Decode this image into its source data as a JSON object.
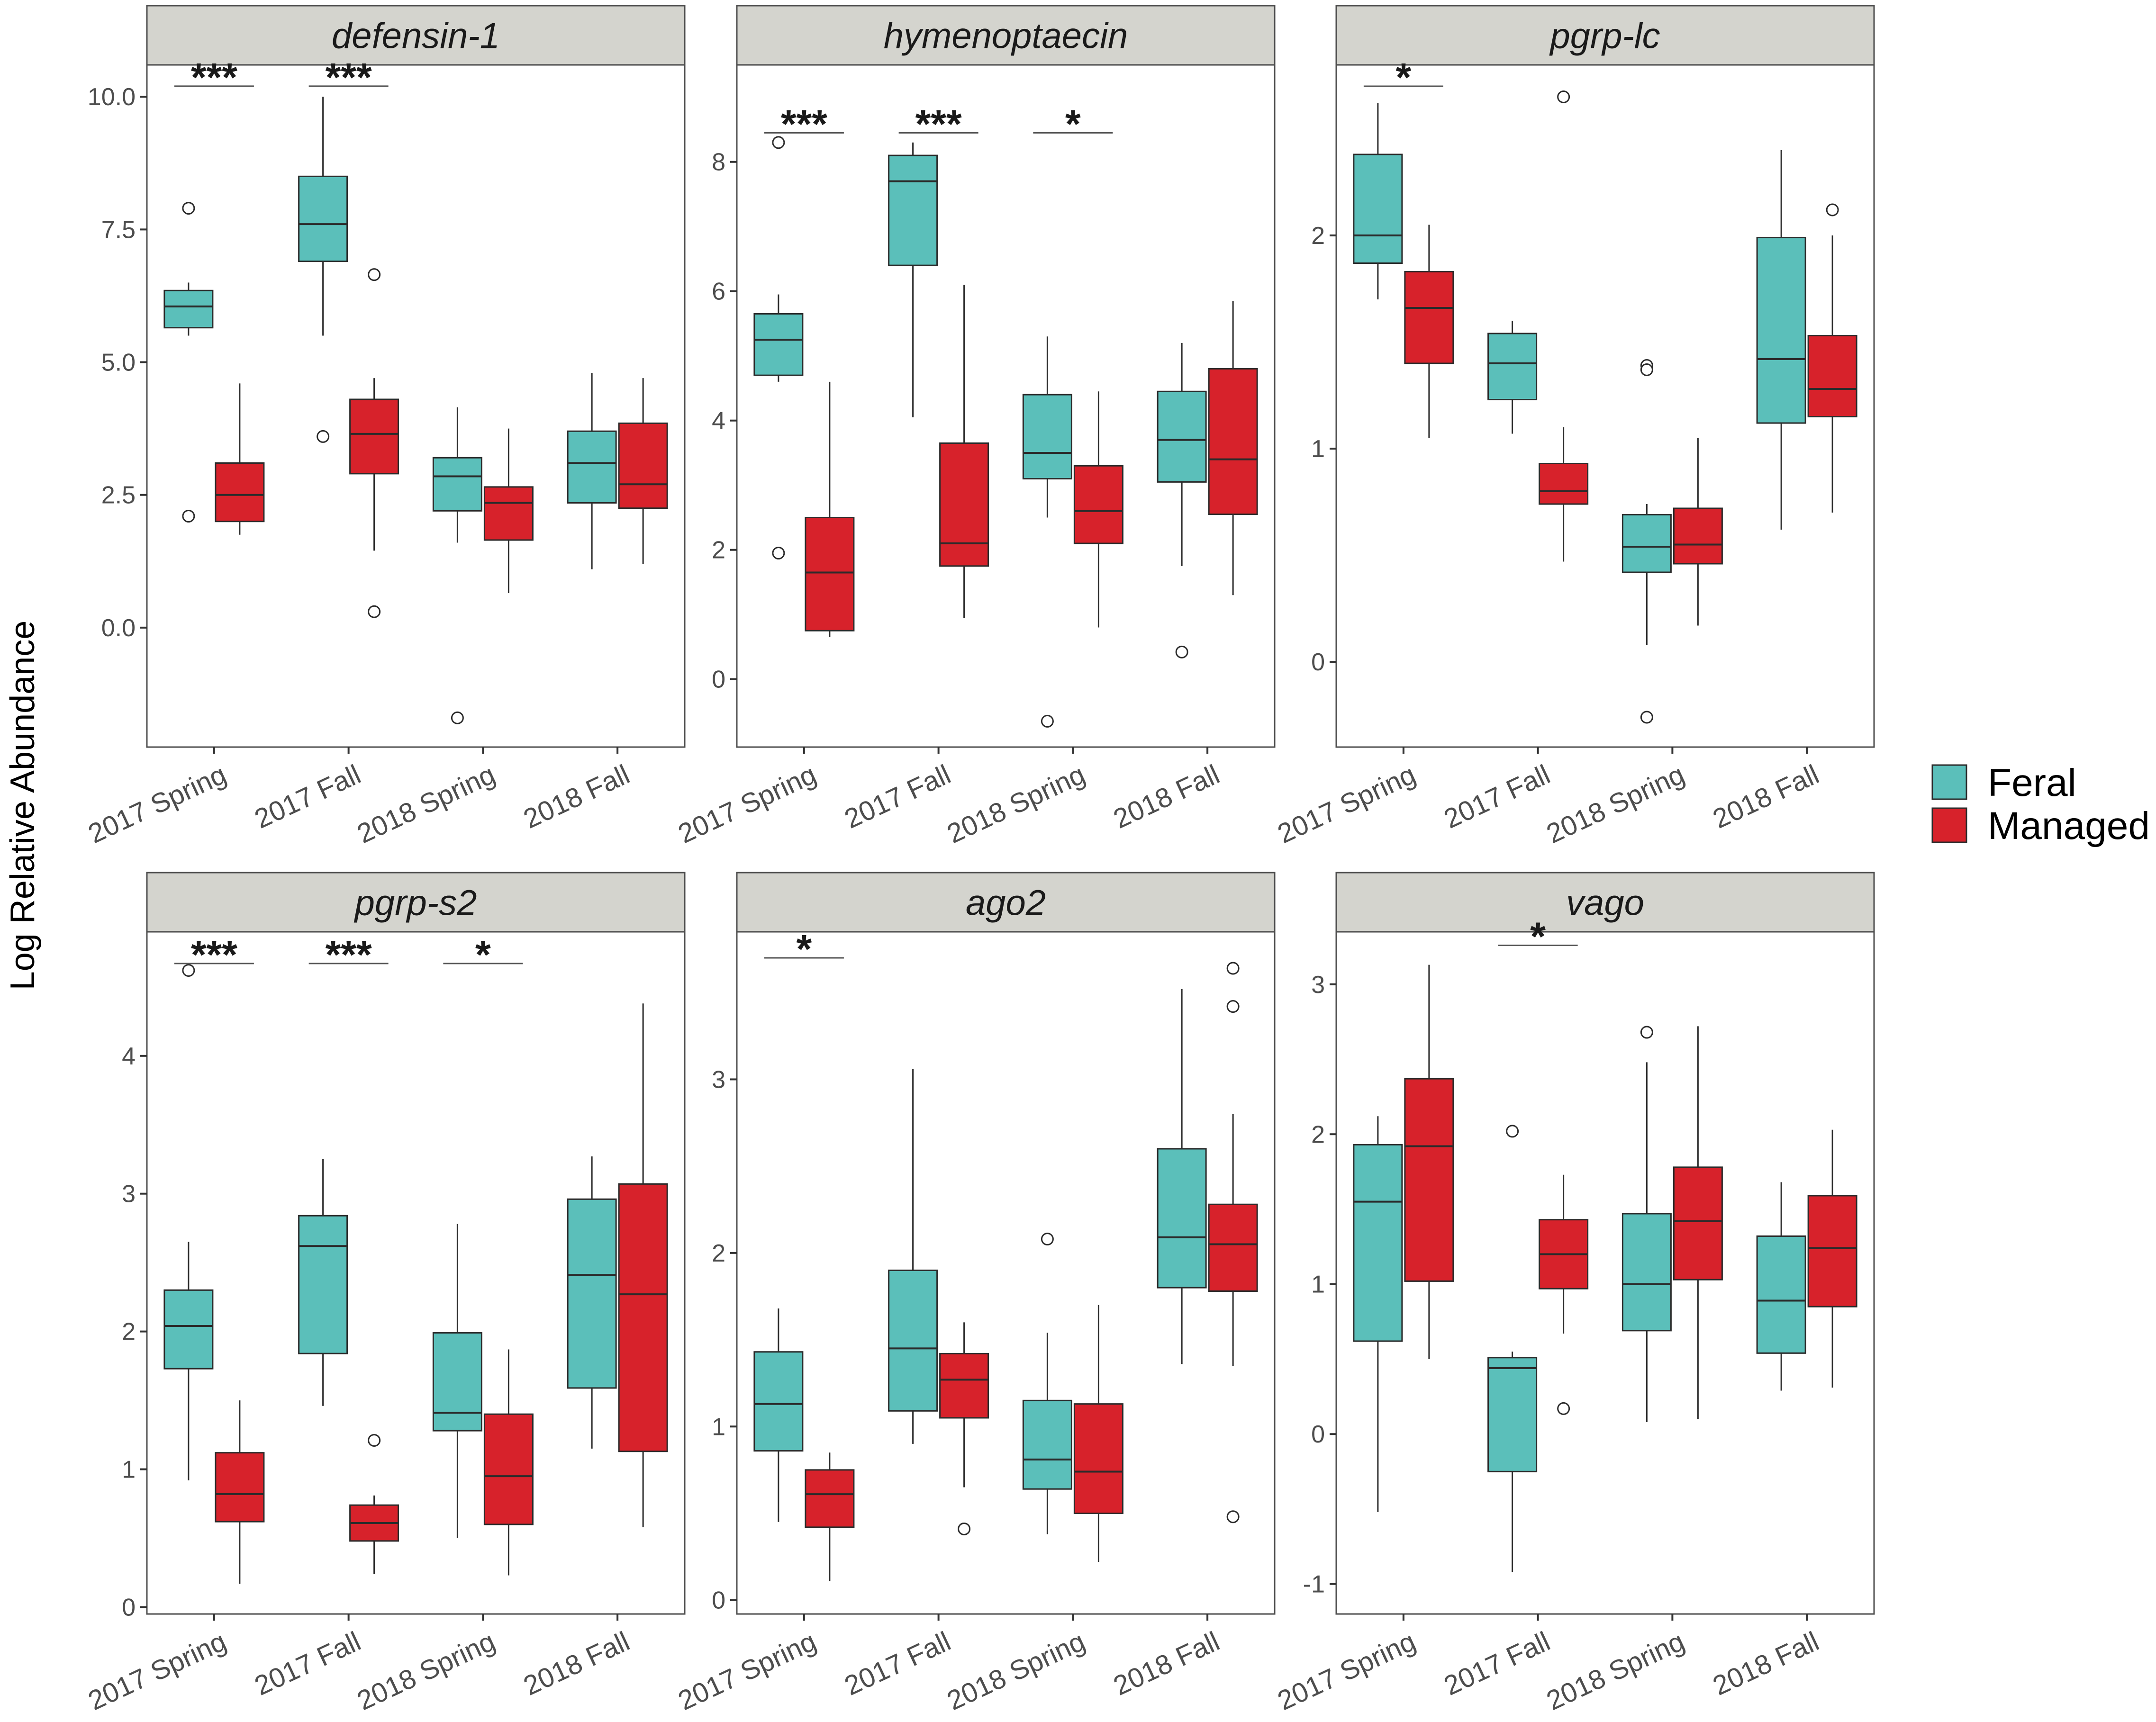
{
  "figure": {
    "y_axis_title": "Log Relative Abundance",
    "legend": {
      "position": "right",
      "items": [
        {
          "label": "Feral",
          "color": "#5BBFBA"
        },
        {
          "label": "Managed",
          "color": "#D7222B"
        }
      ]
    },
    "colors": {
      "feral": "#5BBFBA",
      "managed": "#D7222B",
      "strip": "#D4D4CE",
      "box_stroke": "#2b2b2b",
      "panel_border": "#4d4d4d"
    }
  },
  "chart_data": [
    {
      "type": "boxplot",
      "title": "defensin-1",
      "categories": [
        "2017 Spring",
        "2017 Fall",
        "2018 Spring",
        "2018 Fall"
      ],
      "ylim": [
        -2.25,
        10.6
      ],
      "yticks": [
        0,
        2.5,
        5,
        7.5,
        10
      ],
      "ytick_labels": [
        "0.0",
        "2.5",
        "5.0",
        "7.5",
        "10.0"
      ],
      "series": [
        {
          "name": "Feral",
          "boxes": [
            {
              "q1": 5.65,
              "median": 6.05,
              "q3": 6.35,
              "whisker_low": 5.5,
              "whisker_high": 6.5,
              "outliers": [
                7.9,
                2.1
              ]
            },
            {
              "q1": 6.9,
              "median": 7.6,
              "q3": 8.5,
              "whisker_low": 5.5,
              "whisker_high": 10.0,
              "outliers": [
                3.6
              ]
            },
            {
              "q1": 2.2,
              "median": 2.85,
              "q3": 3.2,
              "whisker_low": 1.6,
              "whisker_high": 4.15,
              "outliers": [
                -1.7
              ]
            },
            {
              "q1": 2.35,
              "median": 3.1,
              "q3": 3.7,
              "whisker_low": 1.1,
              "whisker_high": 4.8,
              "outliers": []
            }
          ]
        },
        {
          "name": "Managed",
          "boxes": [
            {
              "q1": 2.0,
              "median": 2.5,
              "q3": 3.1,
              "whisker_low": 1.75,
              "whisker_high": 4.6,
              "outliers": []
            },
            {
              "q1": 2.9,
              "median": 3.65,
              "q3": 4.3,
              "whisker_low": 1.45,
              "whisker_high": 4.7,
              "outliers": [
                6.65,
                0.3
              ]
            },
            {
              "q1": 1.65,
              "median": 2.35,
              "q3": 2.65,
              "whisker_low": 0.65,
              "whisker_high": 3.75,
              "outliers": []
            },
            {
              "q1": 2.25,
              "median": 2.7,
              "q3": 3.85,
              "whisker_low": 1.2,
              "whisker_high": 4.7,
              "outliers": []
            }
          ]
        }
      ],
      "annotations": [
        {
          "category": 0,
          "label": "***",
          "y": 10.2
        },
        {
          "category": 1,
          "label": "***",
          "y": 10.2
        }
      ]
    },
    {
      "type": "boxplot",
      "title": "hymenoptaecin",
      "categories": [
        "2017 Spring",
        "2017 Fall",
        "2018 Spring",
        "2018 Fall"
      ],
      "ylim": [
        -1.05,
        9.5
      ],
      "yticks": [
        0,
        2,
        4,
        6,
        8
      ],
      "ytick_labels": [
        "0",
        "2",
        "4",
        "6",
        "8"
      ],
      "series": [
        {
          "name": "Feral",
          "boxes": [
            {
              "q1": 4.7,
              "median": 5.25,
              "q3": 5.65,
              "whisker_low": 4.6,
              "whisker_high": 5.95,
              "outliers": [
                8.3,
                1.95
              ]
            },
            {
              "q1": 6.4,
              "median": 7.7,
              "q3": 8.1,
              "whisker_low": 4.05,
              "whisker_high": 8.3,
              "outliers": []
            },
            {
              "q1": 3.1,
              "median": 3.5,
              "q3": 4.4,
              "whisker_low": 2.5,
              "whisker_high": 5.3,
              "outliers": [
                -0.65
              ]
            },
            {
              "q1": 3.05,
              "median": 3.7,
              "q3": 4.45,
              "whisker_low": 1.75,
              "whisker_high": 5.2,
              "outliers": [
                0.42
              ]
            }
          ]
        },
        {
          "name": "Managed",
          "boxes": [
            {
              "q1": 0.75,
              "median": 1.65,
              "q3": 2.5,
              "whisker_low": 0.65,
              "whisker_high": 4.6,
              "outliers": []
            },
            {
              "q1": 1.75,
              "median": 2.1,
              "q3": 3.65,
              "whisker_low": 0.95,
              "whisker_high": 6.1,
              "outliers": []
            },
            {
              "q1": 2.1,
              "median": 2.6,
              "q3": 3.3,
              "whisker_low": 0.8,
              "whisker_high": 4.45,
              "outliers": []
            },
            {
              "q1": 2.55,
              "median": 3.4,
              "q3": 4.8,
              "whisker_low": 1.3,
              "whisker_high": 5.85,
              "outliers": []
            }
          ]
        }
      ],
      "annotations": [
        {
          "category": 0,
          "label": "***",
          "y": 8.45
        },
        {
          "category": 1,
          "label": "***",
          "y": 8.45
        },
        {
          "category": 2,
          "label": "*",
          "y": 8.45
        }
      ]
    },
    {
      "type": "boxplot",
      "title": "pgrp-lc",
      "categories": [
        "2017 Spring",
        "2017 Fall",
        "2018 Spring",
        "2018 Fall"
      ],
      "ylim": [
        -0.4,
        2.8
      ],
      "yticks": [
        0,
        1,
        2
      ],
      "ytick_labels": [
        "0",
        "1",
        "2"
      ],
      "series": [
        {
          "name": "Feral",
          "boxes": [
            {
              "q1": 1.87,
              "median": 2.0,
              "q3": 2.38,
              "whisker_low": 1.7,
              "whisker_high": 2.62,
              "outliers": []
            },
            {
              "q1": 1.23,
              "median": 1.4,
              "q3": 1.54,
              "whisker_low": 1.07,
              "whisker_high": 1.6,
              "outliers": []
            },
            {
              "q1": 0.42,
              "median": 0.54,
              "q3": 0.69,
              "whisker_low": 0.08,
              "whisker_high": 0.74,
              "outliers": [
                1.39,
                1.37,
                -0.26
              ]
            },
            {
              "q1": 1.12,
              "median": 1.42,
              "q3": 1.99,
              "whisker_low": 0.62,
              "whisker_high": 2.4,
              "outliers": []
            }
          ]
        },
        {
          "name": "Managed",
          "boxes": [
            {
              "q1": 1.4,
              "median": 1.66,
              "q3": 1.83,
              "whisker_low": 1.05,
              "whisker_high": 2.05,
              "outliers": []
            },
            {
              "q1": 0.74,
              "median": 0.8,
              "q3": 0.93,
              "whisker_low": 0.47,
              "whisker_high": 1.1,
              "outliers": [
                2.65
              ]
            },
            {
              "q1": 0.46,
              "median": 0.55,
              "q3": 0.72,
              "whisker_low": 0.17,
              "whisker_high": 1.05,
              "outliers": []
            },
            {
              "q1": 1.15,
              "median": 1.28,
              "q3": 1.53,
              "whisker_low": 0.7,
              "whisker_high": 2.0,
              "outliers": [
                2.12
              ]
            }
          ]
        }
      ],
      "annotations": [
        {
          "category": 0,
          "label": "*",
          "y": 2.7
        }
      ]
    },
    {
      "type": "boxplot",
      "title": "pgrp-s2",
      "categories": [
        "2017 Spring",
        "2017 Fall",
        "2018 Spring",
        "2018 Fall"
      ],
      "ylim": [
        -0.05,
        4.9
      ],
      "yticks": [
        0,
        1,
        2,
        3,
        4
      ],
      "ytick_labels": [
        "0",
        "1",
        "2",
        "3",
        "4"
      ],
      "series": [
        {
          "name": "Feral",
          "boxes": [
            {
              "q1": 1.73,
              "median": 2.04,
              "q3": 2.3,
              "whisker_low": 0.92,
              "whisker_high": 2.65,
              "outliers": [
                4.62
              ]
            },
            {
              "q1": 1.84,
              "median": 2.62,
              "q3": 2.84,
              "whisker_low": 1.46,
              "whisker_high": 3.25,
              "outliers": []
            },
            {
              "q1": 1.28,
              "median": 1.41,
              "q3": 1.99,
              "whisker_low": 0.5,
              "whisker_high": 2.78,
              "outliers": []
            },
            {
              "q1": 1.59,
              "median": 2.41,
              "q3": 2.96,
              "whisker_low": 1.15,
              "whisker_high": 3.27,
              "outliers": []
            }
          ]
        },
        {
          "name": "Managed",
          "boxes": [
            {
              "q1": 0.62,
              "median": 0.82,
              "q3": 1.12,
              "whisker_low": 0.17,
              "whisker_high": 1.5,
              "outliers": []
            },
            {
              "q1": 0.48,
              "median": 0.61,
              "q3": 0.74,
              "whisker_low": 0.24,
              "whisker_high": 0.81,
              "outliers": [
                1.21
              ]
            },
            {
              "q1": 0.6,
              "median": 0.95,
              "q3": 1.4,
              "whisker_low": 0.23,
              "whisker_high": 1.87,
              "outliers": []
            },
            {
              "q1": 1.13,
              "median": 2.27,
              "q3": 3.07,
              "whisker_low": 0.58,
              "whisker_high": 4.38,
              "outliers": []
            }
          ]
        }
      ],
      "annotations": [
        {
          "category": 0,
          "label": "***",
          "y": 4.67
        },
        {
          "category": 1,
          "label": "***",
          "y": 4.67
        },
        {
          "category": 2,
          "label": "*",
          "y": 4.67
        }
      ]
    },
    {
      "type": "boxplot",
      "title": "ago2",
      "categories": [
        "2017 Spring",
        "2017 Fall",
        "2018 Spring",
        "2018 Fall"
      ],
      "ylim": [
        -0.08,
        3.85
      ],
      "yticks": [
        0,
        1,
        2,
        3
      ],
      "ytick_labels": [
        "0",
        "1",
        "2",
        "3"
      ],
      "series": [
        {
          "name": "Feral",
          "boxes": [
            {
              "q1": 0.86,
              "median": 1.13,
              "q3": 1.43,
              "whisker_low": 0.45,
              "whisker_high": 1.68,
              "outliers": []
            },
            {
              "q1": 1.09,
              "median": 1.45,
              "q3": 1.9,
              "whisker_low": 0.9,
              "whisker_high": 3.06,
              "outliers": []
            },
            {
              "q1": 0.64,
              "median": 0.81,
              "q3": 1.15,
              "whisker_low": 0.38,
              "whisker_high": 1.54,
              "outliers": [
                2.08
              ]
            },
            {
              "q1": 1.8,
              "median": 2.09,
              "q3": 2.6,
              "whisker_low": 1.36,
              "whisker_high": 3.52,
              "outliers": []
            }
          ]
        },
        {
          "name": "Managed",
          "boxes": [
            {
              "q1": 0.42,
              "median": 0.61,
              "q3": 0.75,
              "whisker_low": 0.11,
              "whisker_high": 0.85,
              "outliers": []
            },
            {
              "q1": 1.05,
              "median": 1.27,
              "q3": 1.42,
              "whisker_low": 0.65,
              "whisker_high": 1.6,
              "outliers": [
                0.41
              ]
            },
            {
              "q1": 0.5,
              "median": 0.74,
              "q3": 1.13,
              "whisker_low": 0.22,
              "whisker_high": 1.7,
              "outliers": []
            },
            {
              "q1": 1.78,
              "median": 2.05,
              "q3": 2.28,
              "whisker_low": 1.35,
              "whisker_high": 2.8,
              "outliers": [
                3.64,
                3.42,
                0.48
              ]
            }
          ]
        }
      ],
      "annotations": [
        {
          "category": 0,
          "label": "*",
          "y": 3.7
        }
      ]
    },
    {
      "type": "boxplot",
      "title": "vago",
      "categories": [
        "2017 Spring",
        "2017 Fall",
        "2018 Spring",
        "2018 Fall"
      ],
      "ylim": [
        -1.2,
        3.35
      ],
      "yticks": [
        -1,
        0,
        1,
        2,
        3
      ],
      "ytick_labels": [
        "-1",
        "0",
        "1",
        "2",
        "3"
      ],
      "series": [
        {
          "name": "Feral",
          "boxes": [
            {
              "q1": 0.62,
              "median": 1.55,
              "q3": 1.93,
              "whisker_low": -0.52,
              "whisker_high": 2.12,
              "outliers": []
            },
            {
              "q1": -0.25,
              "median": 0.44,
              "q3": 0.51,
              "whisker_low": -0.92,
              "whisker_high": 0.55,
              "outliers": [
                2.02
              ]
            },
            {
              "q1": 0.69,
              "median": 1.0,
              "q3": 1.47,
              "whisker_low": 0.08,
              "whisker_high": 2.48,
              "outliers": [
                2.68
              ]
            },
            {
              "q1": 0.54,
              "median": 0.89,
              "q3": 1.32,
              "whisker_low": 0.29,
              "whisker_high": 1.68,
              "outliers": []
            }
          ]
        },
        {
          "name": "Managed",
          "boxes": [
            {
              "q1": 1.02,
              "median": 1.92,
              "q3": 2.37,
              "whisker_low": 0.5,
              "whisker_high": 3.13,
              "outliers": []
            },
            {
              "q1": 0.97,
              "median": 1.2,
              "q3": 1.43,
              "whisker_low": 0.67,
              "whisker_high": 1.73,
              "outliers": [
                0.17
              ]
            },
            {
              "q1": 1.03,
              "median": 1.42,
              "q3": 1.78,
              "whisker_low": 0.1,
              "whisker_high": 2.72,
              "outliers": []
            },
            {
              "q1": 0.85,
              "median": 1.24,
              "q3": 1.59,
              "whisker_low": 0.31,
              "whisker_high": 2.03,
              "outliers": []
            }
          ]
        }
      ],
      "annotations": [
        {
          "category": 1,
          "label": "*",
          "y": 3.26
        }
      ]
    }
  ]
}
